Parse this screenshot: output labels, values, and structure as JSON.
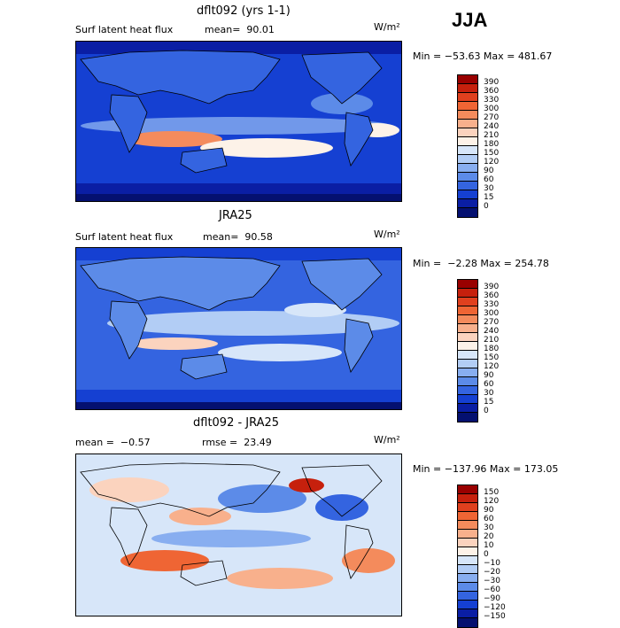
{
  "season": "JJA",
  "panels": [
    {
      "title": "dflt092 (yrs 1-1)",
      "var_label": "Surf latent heat flux",
      "stat_label": "mean=  90.01",
      "units": "W/m²",
      "minmax": "Min = −53.63 Max = 481.67",
      "levels": [
        "390",
        "360",
        "330",
        "300",
        "270",
        "240",
        "210",
        "180",
        "150",
        "120",
        "90",
        "60",
        "30",
        "15",
        "0"
      ],
      "colors": [
        "#990000",
        "#c6200d",
        "#e0401e",
        "#ef6534",
        "#f48b5c",
        "#f8b08c",
        "#fbd3be",
        "#fdf2e8",
        "#d7e6f9",
        "#b2cdf5",
        "#88aef0",
        "#5c8be8",
        "#3464e0",
        "#1540d2",
        "#0a1ea4",
        "#041070"
      ],
      "base": "#1540d2"
    },
    {
      "title": "JRA25",
      "var_label": "Surf latent heat flux",
      "stat_label": "mean=  90.58",
      "units": "W/m²",
      "minmax": "Min =  −2.28 Max = 254.78",
      "levels": [
        "390",
        "360",
        "330",
        "300",
        "270",
        "240",
        "210",
        "180",
        "150",
        "120",
        "90",
        "60",
        "30",
        "15",
        "0"
      ],
      "colors": [
        "#990000",
        "#c6200d",
        "#e0401e",
        "#ef6534",
        "#f48b5c",
        "#f8b08c",
        "#fbd3be",
        "#fdf2e8",
        "#d7e6f9",
        "#b2cdf5",
        "#88aef0",
        "#5c8be8",
        "#3464e0",
        "#1540d2",
        "#0a1ea4",
        "#041070"
      ],
      "base": "#3464e0"
    },
    {
      "title": "dflt092 - JRA25",
      "var_label": "mean =  −0.57",
      "stat_label": "rmse =  23.49",
      "units": "W/m²",
      "minmax": "Min = −137.96 Max = 173.05",
      "levels": [
        "150",
        "120",
        "90",
        "60",
        "30",
        "20",
        "10",
        "0",
        "−10",
        "−20",
        "−30",
        "−60",
        "−90",
        "−120",
        "−150"
      ],
      "colors": [
        "#990000",
        "#c6200d",
        "#e0401e",
        "#ef6534",
        "#f48b5c",
        "#f8b08c",
        "#fbd3be",
        "#fdf2e8",
        "#d7e6f9",
        "#b2cdf5",
        "#88aef0",
        "#5c8be8",
        "#3464e0",
        "#1540d2",
        "#0a1ea4",
        "#041070"
      ],
      "base": "#d7e6f9"
    }
  ]
}
